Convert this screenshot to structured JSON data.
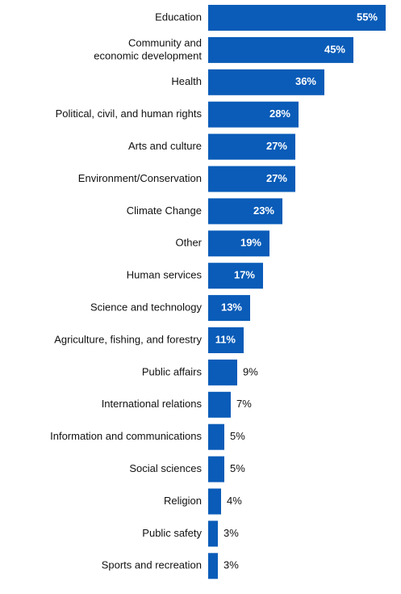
{
  "chart_data": {
    "type": "bar",
    "orientation": "horizontal",
    "categories": [
      "Education",
      "Community and economic development",
      "Health",
      "Political, civil, and human rights",
      "Arts and culture",
      "Environment/Conservation",
      "Climate Change",
      "Other",
      "Human services",
      "Science and technology",
      "Agriculture, fishing, and forestry",
      "Public affairs",
      "International relations",
      "Information and communications",
      "Social sciences",
      "Religion",
      "Public safety",
      "Sports and recreation"
    ],
    "category_lines": [
      [
        "Education"
      ],
      [
        "Community and",
        "economic development"
      ],
      [
        "Health"
      ],
      [
        "Political, civil, and human rights"
      ],
      [
        "Arts and culture"
      ],
      [
        "Environment/Conservation"
      ],
      [
        "Climate Change"
      ],
      [
        "Other"
      ],
      [
        "Human services"
      ],
      [
        "Science and technology"
      ],
      [
        "Agriculture, fishing, and forestry"
      ],
      [
        "Public affairs"
      ],
      [
        "International relations"
      ],
      [
        "Information and communications"
      ],
      [
        "Social sciences"
      ],
      [
        "Religion"
      ],
      [
        "Public safety"
      ],
      [
        "Sports and recreation"
      ]
    ],
    "values": [
      55,
      45,
      36,
      28,
      27,
      27,
      23,
      19,
      17,
      13,
      11,
      9,
      7,
      5,
      5,
      4,
      3,
      3
    ],
    "value_labels": [
      "55%",
      "45%",
      "36%",
      "28%",
      "27%",
      "27%",
      "23%",
      "19%",
      "17%",
      "13%",
      "11%",
      "9%",
      "7%",
      "5%",
      "5%",
      "4%",
      "3%",
      "3%"
    ],
    "unit": "%",
    "xlim": [
      0,
      55
    ],
    "grid": false,
    "legend": "none",
    "bar_color": "#0a5cb8"
  }
}
